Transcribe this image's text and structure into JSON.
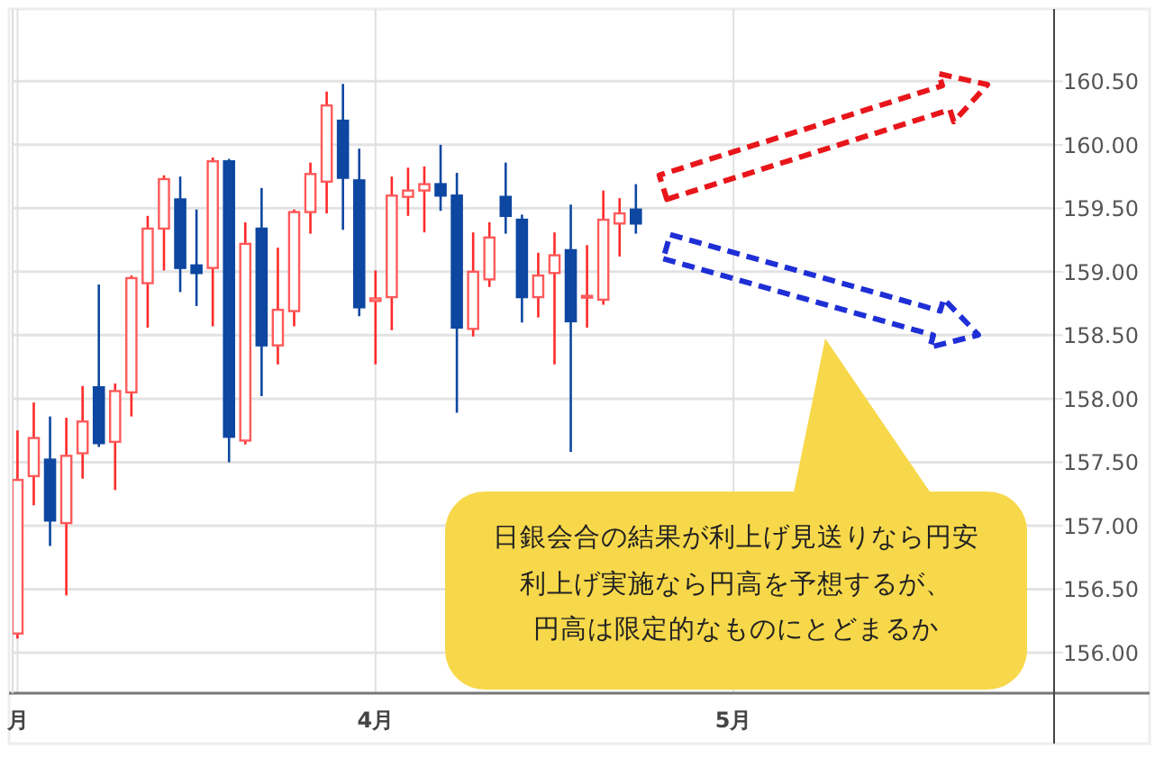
{
  "chart_data": {
    "type": "candlestick",
    "categories": [
      "月",
      null,
      null,
      null,
      null,
      null,
      null,
      null,
      null,
      null,
      null,
      null,
      null,
      null,
      null,
      null,
      null,
      null,
      null,
      null,
      null,
      null,
      "4月",
      null,
      null,
      null,
      null,
      null,
      null,
      null,
      null,
      null,
      null,
      null,
      null,
      null,
      null,
      null,
      null,
      null,
      null,
      null,
      null,
      null,
      "5月",
      null,
      null,
      null,
      null,
      null,
      null,
      null,
      null,
      null,
      null,
      null,
      null,
      null,
      null,
      null,
      null,
      null,
      null,
      null
    ],
    "ohlc": [
      [
        156.15,
        157.75,
        156.11,
        157.36
      ],
      [
        157.39,
        157.97,
        157.16,
        157.69
      ],
      [
        157.52,
        157.86,
        156.84,
        157.04
      ],
      [
        157.02,
        157.85,
        156.45,
        157.55
      ],
      [
        157.57,
        158.1,
        157.37,
        157.82
      ],
      [
        158.09,
        158.9,
        157.62,
        157.65
      ],
      [
        157.66,
        158.12,
        157.28,
        158.06
      ],
      [
        158.05,
        158.97,
        157.86,
        158.95
      ],
      [
        158.91,
        159.44,
        158.56,
        159.34
      ],
      [
        159.34,
        159.76,
        159.01,
        159.73
      ],
      [
        159.57,
        159.75,
        158.84,
        159.03
      ],
      [
        159.05,
        159.49,
        158.73,
        158.99
      ],
      [
        159.03,
        159.9,
        158.57,
        159.87
      ],
      [
        159.87,
        159.89,
        157.5,
        157.7
      ],
      [
        157.67,
        159.39,
        157.64,
        159.22
      ],
      [
        159.34,
        159.66,
        158.02,
        158.42
      ],
      [
        158.42,
        159.19,
        158.27,
        158.7
      ],
      [
        158.69,
        159.49,
        158.57,
        159.47
      ],
      [
        159.47,
        159.86,
        159.3,
        159.77
      ],
      [
        159.71,
        160.42,
        159.46,
        160.31
      ],
      [
        160.19,
        160.48,
        159.33,
        159.74
      ],
      [
        159.72,
        159.97,
        158.65,
        158.72
      ],
      [
        158.77,
        159.01,
        158.27,
        158.79
      ],
      [
        158.8,
        159.75,
        158.54,
        159.6
      ],
      [
        159.59,
        159.82,
        159.44,
        159.64
      ],
      [
        159.64,
        159.83,
        159.31,
        159.69
      ],
      [
        159.69,
        160.0,
        159.48,
        159.6
      ],
      [
        159.6,
        159.78,
        157.89,
        158.56
      ],
      [
        158.55,
        159.31,
        158.49,
        159.0
      ],
      [
        158.94,
        159.39,
        158.88,
        159.27
      ],
      [
        159.59,
        159.86,
        159.3,
        159.44
      ],
      [
        159.41,
        159.45,
        158.6,
        158.8
      ],
      [
        158.8,
        159.15,
        158.64,
        158.97
      ],
      [
        158.99,
        159.31,
        158.27,
        159.13
      ],
      [
        159.17,
        159.53,
        157.58,
        158.61
      ],
      [
        158.8,
        159.21,
        158.56,
        158.81
      ],
      [
        158.78,
        159.64,
        158.74,
        159.41
      ],
      [
        159.38,
        159.58,
        159.12,
        159.46
      ],
      [
        159.49,
        159.69,
        159.3,
        159.38
      ],
      null,
      null,
      null,
      null,
      null,
      null,
      null,
      null,
      null,
      null,
      null,
      null,
      null,
      null,
      null,
      null,
      null,
      null,
      null,
      null,
      null,
      null,
      null,
      null,
      null
    ],
    "ylim": [
      155.68,
      161.07
    ],
    "yticks": [
      {
        "value": 156,
        "label": "156.00"
      },
      {
        "value": 156.5,
        "label": "156.50"
      },
      {
        "value": 157,
        "label": "157.00"
      },
      {
        "value": 157.5,
        "label": "157.50"
      },
      {
        "value": 158,
        "label": "158.00"
      },
      {
        "value": 158.5,
        "label": "158.50"
      },
      {
        "value": 159,
        "label": "159.00"
      },
      {
        "value": 159.5,
        "label": "159.50"
      },
      {
        "value": 160,
        "label": "160.00"
      },
      {
        "value": 160.5,
        "label": "160.50"
      }
    ],
    "grid": true,
    "annotations": [
      "日銀会合の結果が利上げ見送りなら円安",
      "利上げ実施なら円高を予想するが、",
      "円高は限定的なものにとどまるか"
    ]
  }
}
